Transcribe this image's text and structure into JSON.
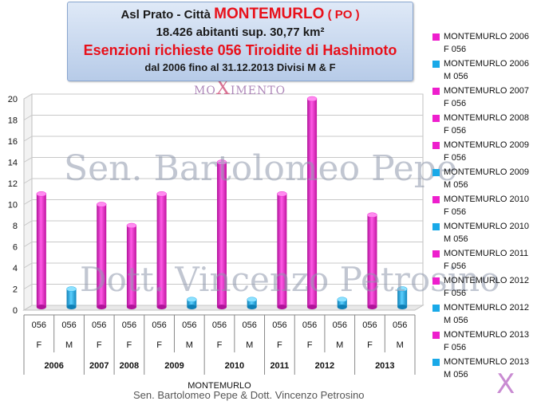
{
  "title": {
    "line1_prefix": "Asl Prato - Città",
    "line1_city": "MONTEMURLO",
    "line1_suffix": "( PO )",
    "line2": "18.426 abitanti sup. 30,77 km²",
    "line3": "Esenzioni richieste 056 Tiroidite di Hashimoto",
    "line4": "dal 2006 fino al 31.12.2013    Divisi M & F"
  },
  "watermarks": {
    "text1": "Sen. Bartolomeo Pepe",
    "text2": "Dott. Vincenzo Petrosino",
    "logo_text_left": "MO",
    "logo_x": "X",
    "logo_text_right": "IMENTO",
    "corner_logo": "X"
  },
  "footer": "Sen. Bartolomeo Pepe &  Dott. Vincenzo Petrosino",
  "colors": {
    "female": "#ee1ecd",
    "male": "#19a9e8"
  },
  "chart_data": {
    "type": "bar",
    "title": "",
    "ylim": [
      0,
      20
    ],
    "yticks": [
      0,
      2,
      4,
      6,
      8,
      10,
      12,
      14,
      16,
      18,
      20
    ],
    "grid": true,
    "legend_position": "right",
    "xlabel": "MONTEMURLO",
    "categories": [
      {
        "code": "056",
        "sex": "F",
        "year": "2006",
        "value": 11
      },
      {
        "code": "056",
        "sex": "M",
        "year": "2006",
        "value": 2
      },
      {
        "code": "056",
        "sex": "F",
        "year": "2007",
        "value": 10
      },
      {
        "code": "056",
        "sex": "F",
        "year": "2008",
        "value": 8
      },
      {
        "code": "056",
        "sex": "F",
        "year": "2009",
        "value": 11
      },
      {
        "code": "056",
        "sex": "M",
        "year": "2009",
        "value": 1
      },
      {
        "code": "056",
        "sex": "F",
        "year": "2010",
        "value": 14
      },
      {
        "code": "056",
        "sex": "M",
        "year": "2010",
        "value": 1
      },
      {
        "code": "056",
        "sex": "F",
        "year": "2011",
        "value": 11
      },
      {
        "code": "056",
        "sex": "F",
        "year": "2012",
        "value": 20
      },
      {
        "code": "056",
        "sex": "M",
        "year": "2012",
        "value": 1
      },
      {
        "code": "056",
        "sex": "F",
        "year": "2013",
        "value": 9
      },
      {
        "code": "056",
        "sex": "M",
        "year": "2013",
        "value": 2
      }
    ],
    "year_groups": [
      {
        "label": "2006",
        "span": 2
      },
      {
        "label": "2007",
        "span": 1
      },
      {
        "label": "2008",
        "span": 1
      },
      {
        "label": "2009",
        "span": 2
      },
      {
        "label": "2010",
        "span": 2
      },
      {
        "label": "2011",
        "span": 1
      },
      {
        "label": "2012",
        "span": 2
      },
      {
        "label": "2013",
        "span": 2
      }
    ],
    "legend": [
      {
        "line1": "MONTEMURLO 2006",
        "line2": "F 056",
        "sex": "F"
      },
      {
        "line1": "MONTEMURLO 2006",
        "line2": "M 056",
        "sex": "M"
      },
      {
        "line1": "MONTEMURLO 2007",
        "line2": "F 056",
        "sex": "F"
      },
      {
        "line1": "MONTEMURLO 2008",
        "line2": "F 056",
        "sex": "F"
      },
      {
        "line1": "MONTEMURLO 2009",
        "line2": "F 056",
        "sex": "F"
      },
      {
        "line1": "MONTEMURLO 2009",
        "line2": "M 056",
        "sex": "M"
      },
      {
        "line1": "MONTEMURLO 2010",
        "line2": "F 056",
        "sex": "F"
      },
      {
        "line1": "MONTEMURLO 2010",
        "line2": "M 056",
        "sex": "M"
      },
      {
        "line1": "MONTEMURLO 2011",
        "line2": "F 056",
        "sex": "F"
      },
      {
        "line1": "MONTEMURLO 2012",
        "line2": "F 056",
        "sex": "F"
      },
      {
        "line1": "MONTEMURLO 2012",
        "line2": "M 056",
        "sex": "M"
      },
      {
        "line1": "MONTEMURLO 2013",
        "line2": "F 056",
        "sex": "F"
      },
      {
        "line1": "MONTEMURLO 2013",
        "line2": "M 056",
        "sex": "M"
      }
    ]
  }
}
